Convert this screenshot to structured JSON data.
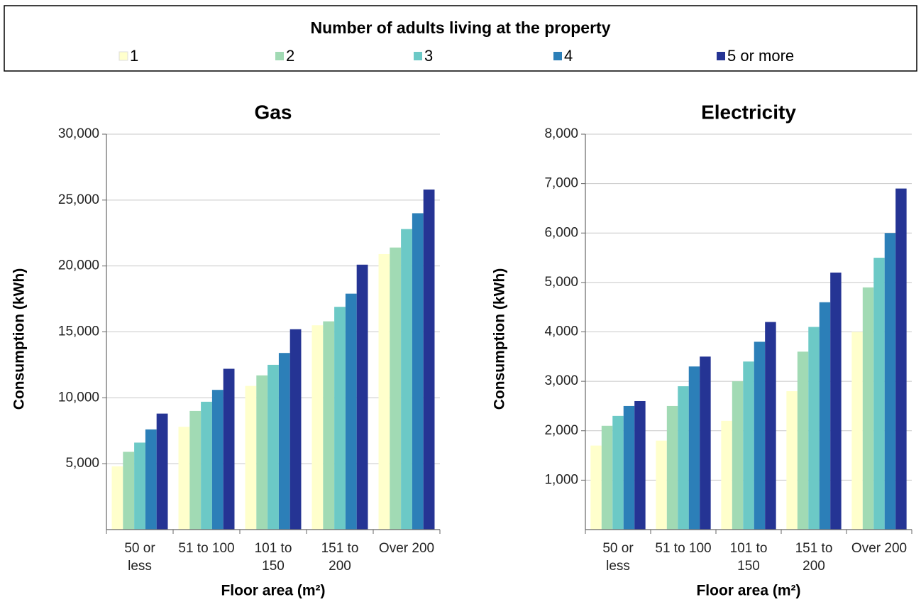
{
  "legend_title": "Number of adults living at the property",
  "chart_data": [
    {
      "type": "bar",
      "title": "Gas",
      "x_label": "Floor area (m²)",
      "y_label": "Consumption (kWh)",
      "categories": [
        "50 or less",
        "51 to 100",
        "101 to 150",
        "151 to 200",
        "Over 200"
      ],
      "series": [
        {
          "name": "1",
          "color": "#ffffcc",
          "values": [
            4800,
            7800,
            10900,
            15500,
            20900
          ]
        },
        {
          "name": "2",
          "color": "#a1dab4",
          "values": [
            5900,
            9000,
            11700,
            15800,
            21400
          ]
        },
        {
          "name": "3",
          "color": "#6cc9c6",
          "values": [
            6600,
            9700,
            12500,
            16900,
            22800
          ]
        },
        {
          "name": "4",
          "color": "#2c7fb8",
          "values": [
            7600,
            10600,
            13400,
            17900,
            24000
          ]
        },
        {
          "name": "5 or more",
          "color": "#253494",
          "values": [
            8800,
            12200,
            15200,
            20100,
            25800
          ]
        }
      ],
      "ylim": [
        0,
        30000
      ],
      "yticks": [
        {
          "value": 5000,
          "label": "5,000"
        },
        {
          "value": 10000,
          "label": "10,000"
        },
        {
          "value": 15000,
          "label": "15,000"
        },
        {
          "value": 20000,
          "label": "20,000"
        },
        {
          "value": 25000,
          "label": "25,000"
        },
        {
          "value": 30000,
          "label": "30,000"
        }
      ],
      "grid": true
    },
    {
      "type": "bar",
      "title": "Electricity",
      "x_label": "Floor area (m²)",
      "y_label": "Consumption (kWh)",
      "categories": [
        "50 or less",
        "51 to 100",
        "101 to 150",
        "151 to 200",
        "Over 200"
      ],
      "series": [
        {
          "name": "1",
          "color": "#ffffcc",
          "values": [
            1700,
            1800,
            2200,
            2800,
            4000
          ]
        },
        {
          "name": "2",
          "color": "#a1dab4",
          "values": [
            2100,
            2500,
            3000,
            3600,
            4900
          ]
        },
        {
          "name": "3",
          "color": "#6cc9c6",
          "values": [
            2300,
            2900,
            3400,
            4100,
            5500
          ]
        },
        {
          "name": "4",
          "color": "#2c7fb8",
          "values": [
            2500,
            3300,
            3800,
            4600,
            6000
          ]
        },
        {
          "name": "5 or more",
          "color": "#253494",
          "values": [
            2600,
            3500,
            4200,
            5200,
            6900
          ]
        }
      ],
      "ylim": [
        0,
        8000
      ],
      "yticks": [
        {
          "value": 1000,
          "label": "1,000"
        },
        {
          "value": 2000,
          "label": "2,000"
        },
        {
          "value": 3000,
          "label": "3,000"
        },
        {
          "value": 4000,
          "label": "4,000"
        },
        {
          "value": 5000,
          "label": "5,000"
        },
        {
          "value": 6000,
          "label": "6,000"
        },
        {
          "value": 7000,
          "label": "7,000"
        },
        {
          "value": 8000,
          "label": "8,000"
        }
      ],
      "grid": true
    }
  ]
}
